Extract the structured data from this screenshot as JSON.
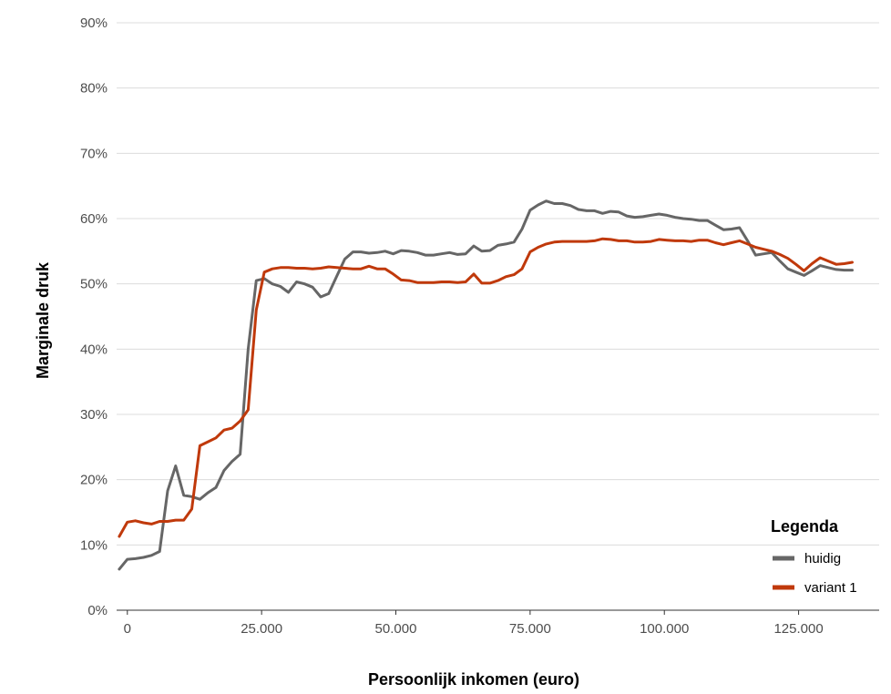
{
  "chart_data": {
    "type": "line",
    "xlabel": "Persoonlijk inkomen (euro)",
    "ylabel": "Marginale druk",
    "xlim": [
      -2000,
      140000
    ],
    "ylim": [
      0,
      0.9
    ],
    "x_ticks": [
      0,
      25000,
      50000,
      75000,
      100000,
      125000
    ],
    "x_tick_labels": [
      "0",
      "25.000",
      "50.000",
      "75.000",
      "100.000",
      "125.000"
    ],
    "y_ticks": [
      0,
      0.1,
      0.2,
      0.3,
      0.4,
      0.5,
      0.6,
      0.7,
      0.8,
      0.9
    ],
    "y_tick_labels": [
      "0%",
      "10%",
      "20%",
      "30%",
      "40%",
      "50%",
      "60%",
      "70%",
      "80%",
      "90%"
    ],
    "grid": "horizontal",
    "legend": {
      "title": "Legenda",
      "placement": "bottom-right"
    },
    "series": [
      {
        "name": "huidig",
        "color": "#666666",
        "points": [
          [
            -1500,
            0.063
          ],
          [
            0,
            0.078
          ],
          [
            1500,
            0.079
          ],
          [
            3000,
            0.081
          ],
          [
            4500,
            0.084
          ],
          [
            6000,
            0.09
          ],
          [
            7500,
            0.183
          ],
          [
            9000,
            0.221
          ],
          [
            10500,
            0.176
          ],
          [
            12000,
            0.174
          ],
          [
            13500,
            0.17
          ],
          [
            15000,
            0.18
          ],
          [
            16500,
            0.188
          ],
          [
            18000,
            0.214
          ],
          [
            19500,
            0.228
          ],
          [
            21000,
            0.239
          ],
          [
            22500,
            0.4
          ],
          [
            24000,
            0.505
          ],
          [
            25500,
            0.508
          ],
          [
            27000,
            0.5
          ],
          [
            28500,
            0.496
          ],
          [
            30000,
            0.487
          ],
          [
            31500,
            0.503
          ],
          [
            33000,
            0.5
          ],
          [
            34500,
            0.495
          ],
          [
            36000,
            0.48
          ],
          [
            37500,
            0.485
          ],
          [
            39000,
            0.512
          ],
          [
            40500,
            0.538
          ],
          [
            42000,
            0.549
          ],
          [
            43500,
            0.549
          ],
          [
            45000,
            0.547
          ],
          [
            46500,
            0.548
          ],
          [
            48000,
            0.55
          ],
          [
            49500,
            0.546
          ],
          [
            51000,
            0.551
          ],
          [
            52500,
            0.55
          ],
          [
            54000,
            0.548
          ],
          [
            55500,
            0.544
          ],
          [
            57000,
            0.544
          ],
          [
            58500,
            0.546
          ],
          [
            60000,
            0.548
          ],
          [
            61500,
            0.545
          ],
          [
            63000,
            0.546
          ],
          [
            64500,
            0.558
          ],
          [
            66000,
            0.55
          ],
          [
            67500,
            0.551
          ],
          [
            69000,
            0.559
          ],
          [
            70500,
            0.561
          ],
          [
            72000,
            0.564
          ],
          [
            73500,
            0.584
          ],
          [
            75000,
            0.613
          ],
          [
            76500,
            0.621
          ],
          [
            78000,
            0.627
          ],
          [
            79500,
            0.623
          ],
          [
            81000,
            0.623
          ],
          [
            82500,
            0.62
          ],
          [
            84000,
            0.614
          ],
          [
            85500,
            0.612
          ],
          [
            87000,
            0.612
          ],
          [
            88500,
            0.608
          ],
          [
            90000,
            0.611
          ],
          [
            91500,
            0.61
          ],
          [
            93000,
            0.604
          ],
          [
            94500,
            0.602
          ],
          [
            96000,
            0.603
          ],
          [
            97500,
            0.605
          ],
          [
            99000,
            0.607
          ],
          [
            100500,
            0.605
          ],
          [
            102000,
            0.602
          ],
          [
            103500,
            0.6
          ],
          [
            105000,
            0.599
          ],
          [
            106500,
            0.597
          ],
          [
            108000,
            0.597
          ],
          [
            109500,
            0.59
          ],
          [
            111000,
            0.583
          ],
          [
            112500,
            0.584
          ],
          [
            114000,
            0.586
          ],
          [
            115500,
            0.566
          ],
          [
            117000,
            0.544
          ],
          [
            118500,
            0.546
          ],
          [
            120000,
            0.548
          ],
          [
            121500,
            0.535
          ],
          [
            123000,
            0.523
          ],
          [
            124500,
            0.518
          ],
          [
            126000,
            0.513
          ],
          [
            127500,
            0.52
          ],
          [
            129000,
            0.528
          ],
          [
            130500,
            0.525
          ],
          [
            132000,
            0.522
          ],
          [
            133500,
            0.521
          ],
          [
            135000,
            0.521
          ]
        ]
      },
      {
        "name": "variant 1",
        "color": "#c0390b",
        "points": [
          [
            -1500,
            0.113
          ],
          [
            0,
            0.135
          ],
          [
            1500,
            0.137
          ],
          [
            3000,
            0.134
          ],
          [
            4500,
            0.132
          ],
          [
            6000,
            0.136
          ],
          [
            7500,
            0.136
          ],
          [
            9000,
            0.138
          ],
          [
            10500,
            0.138
          ],
          [
            12000,
            0.155
          ],
          [
            13500,
            0.252
          ],
          [
            15000,
            0.258
          ],
          [
            16500,
            0.264
          ],
          [
            18000,
            0.276
          ],
          [
            19500,
            0.279
          ],
          [
            21000,
            0.29
          ],
          [
            22500,
            0.307
          ],
          [
            24000,
            0.46
          ],
          [
            25500,
            0.518
          ],
          [
            27000,
            0.523
          ],
          [
            28500,
            0.525
          ],
          [
            30000,
            0.525
          ],
          [
            31500,
            0.524
          ],
          [
            33000,
            0.524
          ],
          [
            34500,
            0.523
          ],
          [
            36000,
            0.524
          ],
          [
            37500,
            0.526
          ],
          [
            39000,
            0.525
          ],
          [
            40500,
            0.524
          ],
          [
            42000,
            0.523
          ],
          [
            43500,
            0.523
          ],
          [
            45000,
            0.527
          ],
          [
            46500,
            0.523
          ],
          [
            48000,
            0.523
          ],
          [
            49500,
            0.515
          ],
          [
            51000,
            0.506
          ],
          [
            52500,
            0.505
          ],
          [
            54000,
            0.502
          ],
          [
            55500,
            0.502
          ],
          [
            57000,
            0.502
          ],
          [
            58500,
            0.503
          ],
          [
            60000,
            0.503
          ],
          [
            61500,
            0.502
          ],
          [
            63000,
            0.503
          ],
          [
            64500,
            0.515
          ],
          [
            66000,
            0.501
          ],
          [
            67500,
            0.501
          ],
          [
            69000,
            0.505
          ],
          [
            70500,
            0.511
          ],
          [
            72000,
            0.514
          ],
          [
            73500,
            0.523
          ],
          [
            75000,
            0.549
          ],
          [
            76500,
            0.556
          ],
          [
            78000,
            0.561
          ],
          [
            79500,
            0.564
          ],
          [
            81000,
            0.565
          ],
          [
            82500,
            0.565
          ],
          [
            84000,
            0.565
          ],
          [
            85500,
            0.565
          ],
          [
            87000,
            0.566
          ],
          [
            88500,
            0.569
          ],
          [
            90000,
            0.568
          ],
          [
            91500,
            0.566
          ],
          [
            93000,
            0.566
          ],
          [
            94500,
            0.564
          ],
          [
            96000,
            0.564
          ],
          [
            97500,
            0.565
          ],
          [
            99000,
            0.568
          ],
          [
            100500,
            0.567
          ],
          [
            102000,
            0.566
          ],
          [
            103500,
            0.566
          ],
          [
            105000,
            0.565
          ],
          [
            106500,
            0.567
          ],
          [
            108000,
            0.567
          ],
          [
            109500,
            0.563
          ],
          [
            111000,
            0.56
          ],
          [
            112500,
            0.563
          ],
          [
            114000,
            0.566
          ],
          [
            115500,
            0.561
          ],
          [
            117000,
            0.556
          ],
          [
            118500,
            0.553
          ],
          [
            120000,
            0.55
          ],
          [
            121500,
            0.545
          ],
          [
            123000,
            0.539
          ],
          [
            124500,
            0.53
          ],
          [
            126000,
            0.52
          ],
          [
            127500,
            0.531
          ],
          [
            129000,
            0.54
          ],
          [
            130500,
            0.535
          ],
          [
            132000,
            0.53
          ],
          [
            133500,
            0.531
          ],
          [
            135000,
            0.533
          ]
        ]
      }
    ]
  }
}
